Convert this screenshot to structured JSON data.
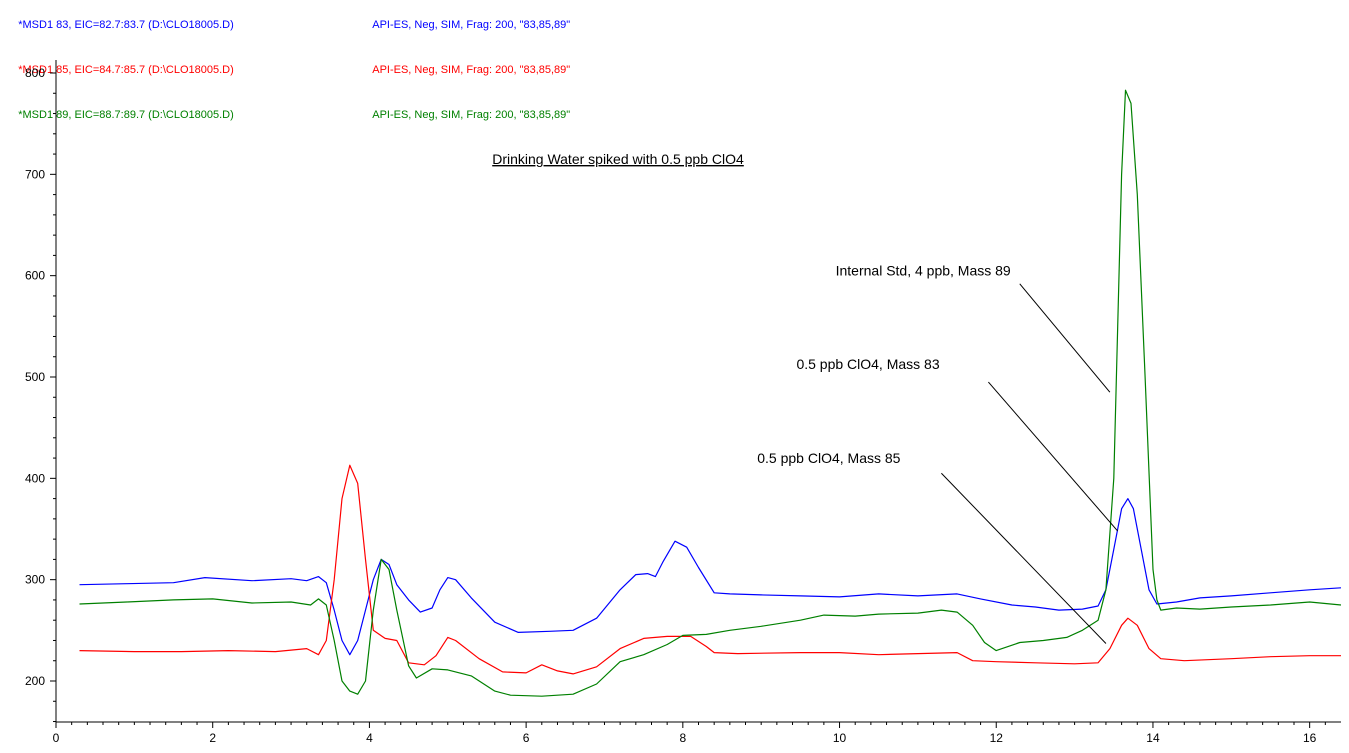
{
  "legend": [
    {
      "trace": "*MSD1 83, EIC=82.7:83.7 (D:\\CLO18005.D)",
      "method": "API-ES, Neg, SIM, Frag: 200, \"83,85,89\"",
      "color": "#0000ff"
    },
    {
      "trace": "*MSD1 85, EIC=84.7:85.7 (D:\\CLO18005.D)",
      "method": "API-ES, Neg, SIM, Frag: 200, \"83,85,89\"",
      "color": "#ff0000"
    },
    {
      "trace": "*MSD1 89, EIC=88.7:89.7 (D:\\CLO18005.D)",
      "method": "API-ES, Neg, SIM, Frag: 200, \"83,85,89\"",
      "color": "#008000"
    }
  ],
  "chart_data": {
    "type": "line",
    "title": "Drinking Water spiked with 0.5 ppb ClO4",
    "xlabel": "",
    "ylabel": "",
    "xlim": [
      0,
      16.4
    ],
    "ylim": [
      155,
      810
    ],
    "x_ticks": [
      0,
      2,
      4,
      6,
      8,
      10,
      12,
      14,
      16
    ],
    "y_ticks": [
      200,
      300,
      400,
      500,
      600,
      700,
      800
    ],
    "grid": false,
    "series": [
      {
        "name": "*MSD1 83",
        "color": "#0000ff",
        "points": [
          [
            0.3,
            295
          ],
          [
            0.9,
            296
          ],
          [
            1.5,
            297
          ],
          [
            1.9,
            302
          ],
          [
            2.5,
            299
          ],
          [
            3.0,
            301
          ],
          [
            3.2,
            299
          ],
          [
            3.35,
            303
          ],
          [
            3.45,
            297
          ],
          [
            3.55,
            270
          ],
          [
            3.65,
            240
          ],
          [
            3.75,
            226
          ],
          [
            3.85,
            240
          ],
          [
            3.95,
            270
          ],
          [
            4.05,
            300
          ],
          [
            4.15,
            320
          ],
          [
            4.25,
            315
          ],
          [
            4.35,
            295
          ],
          [
            4.5,
            280
          ],
          [
            4.65,
            268
          ],
          [
            4.8,
            272
          ],
          [
            4.9,
            290
          ],
          [
            5.0,
            302
          ],
          [
            5.1,
            300
          ],
          [
            5.3,
            282
          ],
          [
            5.6,
            258
          ],
          [
            5.9,
            248
          ],
          [
            6.3,
            249
          ],
          [
            6.6,
            250
          ],
          [
            6.9,
            262
          ],
          [
            7.2,
            290
          ],
          [
            7.4,
            305
          ],
          [
            7.55,
            306
          ],
          [
            7.65,
            303
          ],
          [
            7.75,
            318
          ],
          [
            7.9,
            338
          ],
          [
            8.05,
            332
          ],
          [
            8.2,
            312
          ],
          [
            8.4,
            287
          ],
          [
            8.6,
            286
          ],
          [
            9.0,
            285
          ],
          [
            9.5,
            284
          ],
          [
            10.0,
            283
          ],
          [
            10.5,
            286
          ],
          [
            11.0,
            284
          ],
          [
            11.5,
            286
          ],
          [
            11.8,
            281
          ],
          [
            12.2,
            275
          ],
          [
            12.5,
            273
          ],
          [
            12.8,
            270
          ],
          [
            13.1,
            271
          ],
          [
            13.3,
            274
          ],
          [
            13.4,
            290
          ],
          [
            13.5,
            330
          ],
          [
            13.6,
            370
          ],
          [
            13.68,
            380
          ],
          [
            13.75,
            370
          ],
          [
            13.85,
            330
          ],
          [
            13.95,
            290
          ],
          [
            14.05,
            276
          ],
          [
            14.3,
            278
          ],
          [
            14.6,
            282
          ],
          [
            15.0,
            284
          ],
          [
            15.5,
            287
          ],
          [
            16.0,
            290
          ],
          [
            16.4,
            292
          ]
        ]
      },
      {
        "name": "*MSD1 85",
        "color": "#ff0000",
        "points": [
          [
            0.3,
            230
          ],
          [
            1.0,
            229
          ],
          [
            1.6,
            229
          ],
          [
            2.2,
            230
          ],
          [
            2.8,
            229
          ],
          [
            3.2,
            232
          ],
          [
            3.35,
            226
          ],
          [
            3.45,
            240
          ],
          [
            3.55,
            300
          ],
          [
            3.65,
            380
          ],
          [
            3.75,
            413
          ],
          [
            3.85,
            395
          ],
          [
            3.95,
            320
          ],
          [
            4.05,
            250
          ],
          [
            4.2,
            242
          ],
          [
            4.35,
            240
          ],
          [
            4.5,
            218
          ],
          [
            4.7,
            216
          ],
          [
            4.85,
            225
          ],
          [
            5.0,
            243
          ],
          [
            5.1,
            240
          ],
          [
            5.4,
            222
          ],
          [
            5.7,
            209
          ],
          [
            6.0,
            208
          ],
          [
            6.2,
            216
          ],
          [
            6.4,
            210
          ],
          [
            6.6,
            207
          ],
          [
            6.9,
            214
          ],
          [
            7.2,
            232
          ],
          [
            7.5,
            242
          ],
          [
            7.8,
            244
          ],
          [
            8.1,
            244
          ],
          [
            8.3,
            234
          ],
          [
            8.4,
            228
          ],
          [
            8.7,
            227
          ],
          [
            9.5,
            228
          ],
          [
            10.0,
            228
          ],
          [
            10.5,
            226
          ],
          [
            11.0,
            227
          ],
          [
            11.5,
            228
          ],
          [
            11.7,
            220
          ],
          [
            12.0,
            219
          ],
          [
            12.5,
            218
          ],
          [
            13.0,
            217
          ],
          [
            13.3,
            218
          ],
          [
            13.45,
            232
          ],
          [
            13.6,
            255
          ],
          [
            13.68,
            262
          ],
          [
            13.8,
            255
          ],
          [
            13.95,
            232
          ],
          [
            14.1,
            222
          ],
          [
            14.4,
            220
          ],
          [
            15.0,
            222
          ],
          [
            15.5,
            224
          ],
          [
            16.0,
            225
          ],
          [
            16.4,
            225
          ]
        ]
      },
      {
        "name": "*MSD1 89",
        "color": "#008000",
        "points": [
          [
            0.3,
            276
          ],
          [
            0.9,
            278
          ],
          [
            1.5,
            280
          ],
          [
            2.0,
            281
          ],
          [
            2.5,
            277
          ],
          [
            3.0,
            278
          ],
          [
            3.25,
            275
          ],
          [
            3.35,
            281
          ],
          [
            3.45,
            275
          ],
          [
            3.55,
            240
          ],
          [
            3.65,
            200
          ],
          [
            3.75,
            190
          ],
          [
            3.85,
            187
          ],
          [
            3.95,
            200
          ],
          [
            4.05,
            270
          ],
          [
            4.15,
            320
          ],
          [
            4.25,
            310
          ],
          [
            4.35,
            270
          ],
          [
            4.5,
            215
          ],
          [
            4.6,
            203
          ],
          [
            4.8,
            212
          ],
          [
            5.0,
            211
          ],
          [
            5.3,
            205
          ],
          [
            5.6,
            190
          ],
          [
            5.8,
            186
          ],
          [
            6.2,
            185
          ],
          [
            6.6,
            187
          ],
          [
            6.9,
            197
          ],
          [
            7.2,
            219
          ],
          [
            7.5,
            226
          ],
          [
            7.8,
            236
          ],
          [
            8.0,
            245
          ],
          [
            8.3,
            246
          ],
          [
            8.6,
            250
          ],
          [
            9.0,
            254
          ],
          [
            9.5,
            260
          ],
          [
            9.8,
            265
          ],
          [
            10.2,
            264
          ],
          [
            10.5,
            266
          ],
          [
            11.0,
            267
          ],
          [
            11.3,
            270
          ],
          [
            11.5,
            268
          ],
          [
            11.7,
            255
          ],
          [
            11.85,
            238
          ],
          [
            12.0,
            230
          ],
          [
            12.3,
            238
          ],
          [
            12.6,
            240
          ],
          [
            12.9,
            243
          ],
          [
            13.1,
            250
          ],
          [
            13.3,
            260
          ],
          [
            13.4,
            290
          ],
          [
            13.5,
            400
          ],
          [
            13.55,
            550
          ],
          [
            13.6,
            700
          ],
          [
            13.65,
            783
          ],
          [
            13.72,
            770
          ],
          [
            13.8,
            680
          ],
          [
            13.9,
            500
          ],
          [
            14.0,
            310
          ],
          [
            14.05,
            280
          ],
          [
            14.1,
            270
          ],
          [
            14.3,
            272
          ],
          [
            14.6,
            271
          ],
          [
            15.0,
            273
          ],
          [
            15.5,
            275
          ],
          [
            16.0,
            278
          ],
          [
            16.4,
            275
          ]
        ]
      }
    ],
    "annotations": [
      {
        "text": "Internal Std, 4 ppb, Mass 89",
        "label_at": [
          9.95,
          600
        ],
        "arrow_from": [
          12.3,
          592
        ],
        "arrow_to": [
          13.45,
          485
        ]
      },
      {
        "text": "0.5 ppb ClO4, Mass 83",
        "label_at": [
          9.45,
          508
        ],
        "arrow_from": [
          11.9,
          495
        ],
        "arrow_to": [
          13.55,
          348
        ]
      },
      {
        "text": "0.5 ppb ClO4, Mass 85",
        "label_at": [
          8.95,
          415
        ],
        "arrow_from": [
          11.3,
          405
        ],
        "arrow_to": [
          13.4,
          237
        ]
      }
    ]
  }
}
